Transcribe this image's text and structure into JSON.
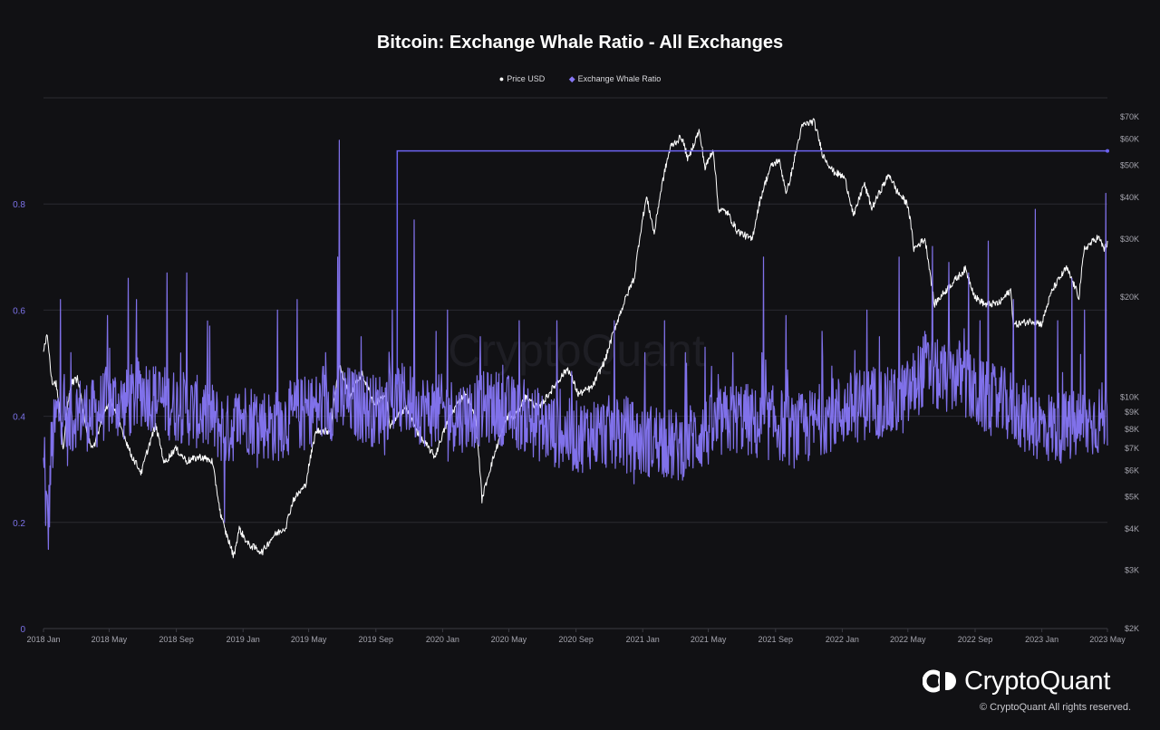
{
  "chart_data": {
    "type": "line",
    "title": "Bitcoin: Exchange Whale Ratio - All Exchanges",
    "legend_position": "top-center",
    "grid": true,
    "x_axis": {
      "range": [
        "2018-01-01",
        "2023-05-01"
      ],
      "tick_labels": [
        "2018 Jan",
        "2018 May",
        "2018 Sep",
        "2019 Jan",
        "2019 May",
        "2019 Sep",
        "2020 Jan",
        "2020 May",
        "2020 Sep",
        "2021 Jan",
        "2021 May",
        "2021 Sep",
        "2022 Jan",
        "2022 May",
        "2022 Sep",
        "2023 Jan",
        "2023 May"
      ],
      "tick_dates": [
        "2018-01-01",
        "2018-05-01",
        "2018-09-01",
        "2019-01-01",
        "2019-05-01",
        "2019-09-01",
        "2020-01-01",
        "2020-05-01",
        "2020-09-01",
        "2021-01-01",
        "2021-05-01",
        "2021-09-01",
        "2022-01-01",
        "2022-05-01",
        "2022-09-01",
        "2023-01-01",
        "2023-05-01"
      ]
    },
    "y_left": {
      "range": [
        0,
        1.0
      ],
      "tick_values": [
        0,
        0.2,
        0.4,
        0.6,
        0.8
      ],
      "tick_labels": [
        "0",
        "0.2",
        "0.4",
        "0.6",
        "0.8"
      ]
    },
    "y_right": {
      "scale": "log",
      "range": [
        2000,
        80000
      ],
      "tick_values": [
        2000,
        3000,
        4000,
        5000,
        6000,
        7000,
        8000,
        9000,
        10000,
        20000,
        30000,
        40000,
        50000,
        60000,
        70000
      ],
      "tick_labels": [
        "$2K",
        "$3K",
        "$4K",
        "$5K",
        "$6K",
        "$7K",
        "$8K",
        "$9K",
        "$10K",
        "$20K",
        "$30K",
        "$40K",
        "$50K",
        "$60K",
        "$70K"
      ]
    },
    "series": [
      {
        "name": "Price USD",
        "axis": "right",
        "color": "#ffffff",
        "points": [
          [
            "2018-01-01",
            14000
          ],
          [
            "2018-01-08",
            15500
          ],
          [
            "2018-01-16",
            11200
          ],
          [
            "2018-01-24",
            11000
          ],
          [
            "2018-02-06",
            6900
          ],
          [
            "2018-02-20",
            11000
          ],
          [
            "2018-03-05",
            11400
          ],
          [
            "2018-03-18",
            8200
          ],
          [
            "2018-04-01",
            6900
          ],
          [
            "2018-04-12",
            7900
          ],
          [
            "2018-04-25",
            9300
          ],
          [
            "2018-05-06",
            9700
          ],
          [
            "2018-05-20",
            8300
          ],
          [
            "2018-06-10",
            6700
          ],
          [
            "2018-06-29",
            5900
          ],
          [
            "2018-07-25",
            8200
          ],
          [
            "2018-08-10",
            6300
          ],
          [
            "2018-08-30",
            7000
          ],
          [
            "2018-09-20",
            6400
          ],
          [
            "2018-10-15",
            6600
          ],
          [
            "2018-11-05",
            6400
          ],
          [
            "2018-11-20",
            4500
          ],
          [
            "2018-11-28",
            4000
          ],
          [
            "2018-12-15",
            3300
          ],
          [
            "2018-12-25",
            4000
          ],
          [
            "2019-01-10",
            3600
          ],
          [
            "2019-02-05",
            3400
          ],
          [
            "2019-02-25",
            3800
          ],
          [
            "2019-03-20",
            4050
          ],
          [
            "2019-04-03",
            4900
          ],
          [
            "2019-04-25",
            5400
          ],
          [
            "2019-05-15",
            7900
          ],
          [
            "2019-06-10",
            7900
          ],
          [
            "2019-06-26",
            12500
          ],
          [
            "2019-07-15",
            10000
          ],
          [
            "2019-08-06",
            11800
          ],
          [
            "2019-08-29",
            9500
          ],
          [
            "2019-09-20",
            10200
          ],
          [
            "2019-09-26",
            8100
          ],
          [
            "2019-10-25",
            9300
          ],
          [
            "2019-11-20",
            7600
          ],
          [
            "2019-12-18",
            6600
          ],
          [
            "2020-01-15",
            8800
          ],
          [
            "2020-02-12",
            10300
          ],
          [
            "2020-03-01",
            8600
          ],
          [
            "2020-03-13",
            4900
          ],
          [
            "2020-04-01",
            6400
          ],
          [
            "2020-04-30",
            8800
          ],
          [
            "2020-05-10",
            8600
          ],
          [
            "2020-06-01",
            10000
          ],
          [
            "2020-06-25",
            9200
          ],
          [
            "2020-07-27",
            11000
          ],
          [
            "2020-08-17",
            12200
          ],
          [
            "2020-09-05",
            10200
          ],
          [
            "2020-10-01",
            10700
          ],
          [
            "2020-10-25",
            13000
          ],
          [
            "2020-11-25",
            18700
          ],
          [
            "2020-12-17",
            23000
          ],
          [
            "2021-01-08",
            40000
          ],
          [
            "2021-01-22",
            31000
          ],
          [
            "2021-02-08",
            46000
          ],
          [
            "2021-02-21",
            57000
          ],
          [
            "2021-03-13",
            61000
          ],
          [
            "2021-03-25",
            52000
          ],
          [
            "2021-04-14",
            63500
          ],
          [
            "2021-04-25",
            49000
          ],
          [
            "2021-05-10",
            56000
          ],
          [
            "2021-05-19",
            37000
          ],
          [
            "2021-06-05",
            36000
          ],
          [
            "2021-06-22",
            31800
          ],
          [
            "2021-07-20",
            29800
          ],
          [
            "2021-08-05",
            40000
          ],
          [
            "2021-08-23",
            49500
          ],
          [
            "2021-09-07",
            52000
          ],
          [
            "2021-09-21",
            41000
          ],
          [
            "2021-10-01",
            48000
          ],
          [
            "2021-10-20",
            66000
          ],
          [
            "2021-11-10",
            68000
          ],
          [
            "2021-11-26",
            54000
          ],
          [
            "2021-12-15",
            48000
          ],
          [
            "2022-01-05",
            46000
          ],
          [
            "2022-01-22",
            35000
          ],
          [
            "2022-02-10",
            44000
          ],
          [
            "2022-02-24",
            37000
          ],
          [
            "2022-03-28",
            47000
          ],
          [
            "2022-04-10",
            42000
          ],
          [
            "2022-05-01",
            38000
          ],
          [
            "2022-05-12",
            28000
          ],
          [
            "2022-06-01",
            30000
          ],
          [
            "2022-06-18",
            19000
          ],
          [
            "2022-07-10",
            21000
          ],
          [
            "2022-08-14",
            24300
          ],
          [
            "2022-09-01",
            20000
          ],
          [
            "2022-09-20",
            19000
          ],
          [
            "2022-10-15",
            19200
          ],
          [
            "2022-11-05",
            21000
          ],
          [
            "2022-11-10",
            16500
          ],
          [
            "2022-12-15",
            17000
          ],
          [
            "2023-01-01",
            16600
          ],
          [
            "2023-01-20",
            21000
          ],
          [
            "2023-02-15",
            24500
          ],
          [
            "2023-03-10",
            20000
          ],
          [
            "2023-03-20",
            28000
          ],
          [
            "2023-04-14",
            30400
          ],
          [
            "2023-04-25",
            28000
          ],
          [
            "2023-05-01",
            29000
          ]
        ]
      },
      {
        "name": "Exchange Whale Ratio",
        "axis": "left",
        "color": "#8777f5",
        "points": [
          [
            "2018-01-01",
            0.3
          ],
          [
            "2018-01-05",
            0.24
          ],
          [
            "2018-01-10",
            0.19
          ],
          [
            "2018-01-15",
            0.33
          ],
          [
            "2018-01-25",
            0.4
          ],
          [
            "2018-02-05",
            0.42
          ],
          [
            "2018-02-15",
            0.37
          ],
          [
            "2018-03-01",
            0.41
          ],
          [
            "2018-04-01",
            0.4
          ],
          [
            "2018-05-01",
            0.43
          ],
          [
            "2018-06-01",
            0.42
          ],
          [
            "2018-07-01",
            0.45
          ],
          [
            "2018-08-01",
            0.43
          ],
          [
            "2018-09-01",
            0.42
          ],
          [
            "2018-10-01",
            0.41
          ],
          [
            "2018-11-01",
            0.4
          ],
          [
            "2018-12-01",
            0.37
          ],
          [
            "2019-01-01",
            0.4
          ],
          [
            "2019-02-01",
            0.39
          ],
          [
            "2019-03-01",
            0.38
          ],
          [
            "2019-04-01",
            0.4
          ],
          [
            "2019-05-01",
            0.41
          ],
          [
            "2019-06-01",
            0.42
          ],
          [
            "2019-07-01",
            0.43
          ],
          [
            "2019-08-01",
            0.42
          ],
          [
            "2019-09-01",
            0.41
          ],
          [
            "2019-10-01",
            0.43
          ],
          [
            "2019-11-01",
            0.43
          ],
          [
            "2019-12-01",
            0.41
          ],
          [
            "2020-01-01",
            0.41
          ],
          [
            "2020-02-01",
            0.4
          ],
          [
            "2020-03-01",
            0.41
          ],
          [
            "2020-04-01",
            0.42
          ],
          [
            "2020-05-01",
            0.41
          ],
          [
            "2020-06-01",
            0.4
          ],
          [
            "2020-07-01",
            0.38
          ],
          [
            "2020-08-01",
            0.37
          ],
          [
            "2020-09-01",
            0.36
          ],
          [
            "2020-10-01",
            0.37
          ],
          [
            "2020-11-01",
            0.37
          ],
          [
            "2020-12-01",
            0.37
          ],
          [
            "2021-01-01",
            0.35
          ],
          [
            "2021-02-01",
            0.36
          ],
          [
            "2021-03-01",
            0.34
          ],
          [
            "2021-04-01",
            0.36
          ],
          [
            "2021-05-01",
            0.37
          ],
          [
            "2021-06-01",
            0.39
          ],
          [
            "2021-07-01",
            0.4
          ],
          [
            "2021-08-01",
            0.38
          ],
          [
            "2021-09-01",
            0.39
          ],
          [
            "2021-10-01",
            0.37
          ],
          [
            "2021-11-01",
            0.38
          ],
          [
            "2021-12-01",
            0.4
          ],
          [
            "2022-01-01",
            0.41
          ],
          [
            "2022-02-01",
            0.42
          ],
          [
            "2022-03-01",
            0.43
          ],
          [
            "2022-04-01",
            0.42
          ],
          [
            "2022-05-01",
            0.44
          ],
          [
            "2022-06-01",
            0.49
          ],
          [
            "2022-07-01",
            0.47
          ],
          [
            "2022-08-01",
            0.48
          ],
          [
            "2022-09-01",
            0.44
          ],
          [
            "2022-10-01",
            0.43
          ],
          [
            "2022-11-01",
            0.42
          ],
          [
            "2022-12-01",
            0.4
          ],
          [
            "2023-01-01",
            0.38
          ],
          [
            "2023-02-01",
            0.38
          ],
          [
            "2023-03-01",
            0.38
          ],
          [
            "2023-04-01",
            0.39
          ],
          [
            "2023-05-01",
            0.4
          ]
        ],
        "spikes": [
          [
            "2018-01-03",
            0.36
          ],
          [
            "2018-02-01",
            0.62
          ],
          [
            "2018-02-20",
            0.52
          ],
          [
            "2018-04-28",
            0.59
          ],
          [
            "2018-06-05",
            0.66
          ],
          [
            "2018-06-20",
            0.62
          ],
          [
            "2018-08-15",
            0.67
          ],
          [
            "2018-09-20",
            0.67
          ],
          [
            "2018-11-01",
            0.57
          ],
          [
            "2018-11-28",
            0.2
          ],
          [
            "2019-03-05",
            0.6
          ],
          [
            "2019-04-10",
            0.62
          ],
          [
            "2019-06-01",
            0.52
          ],
          [
            "2019-06-26",
            0.92
          ],
          [
            "2019-06-23",
            0.7
          ],
          [
            "2019-08-05",
            0.55
          ],
          [
            "2019-10-01",
            0.6
          ],
          [
            "2019-11-10",
            0.77
          ],
          [
            "2019-12-20",
            0.56
          ],
          [
            "2020-01-10",
            0.6
          ],
          [
            "2020-03-10",
            0.55
          ],
          [
            "2020-05-20",
            0.58
          ],
          [
            "2020-07-28",
            0.58
          ],
          [
            "2020-11-10",
            0.58
          ],
          [
            "2021-01-05",
            0.52
          ],
          [
            "2021-02-10",
            0.58
          ],
          [
            "2021-03-20",
            0.52
          ],
          [
            "2021-04-25",
            0.53
          ],
          [
            "2021-06-15",
            0.52
          ],
          [
            "2021-08-10",
            0.7
          ],
          [
            "2021-09-20",
            0.59
          ],
          [
            "2021-11-25",
            0.56
          ],
          [
            "2022-02-15",
            0.6
          ],
          [
            "2022-03-10",
            0.55
          ],
          [
            "2022-04-15",
            0.7
          ],
          [
            "2022-06-01",
            0.56
          ],
          [
            "2022-06-15",
            0.72
          ],
          [
            "2022-06-22",
            0.49
          ],
          [
            "2022-07-15",
            0.69
          ],
          [
            "2022-08-20",
            0.67
          ],
          [
            "2022-09-10",
            0.58
          ],
          [
            "2022-09-25",
            0.73
          ],
          [
            "2022-11-10",
            0.62
          ],
          [
            "2022-12-20",
            0.79
          ],
          [
            "2023-01-30",
            0.58
          ],
          [
            "2023-02-25",
            0.66
          ],
          [
            "2023-03-20",
            0.6
          ],
          [
            "2023-04-28",
            0.82
          ]
        ]
      }
    ],
    "annotations": [
      {
        "type": "horizontal-line",
        "series": "Exchange Whale Ratio",
        "y": 0.9,
        "from": "2019-10-10",
        "to": "2023-05-01",
        "color": "#6c63f0"
      }
    ]
  },
  "legend": [
    {
      "label": "Price USD",
      "color": "#ffffff",
      "marker": "circle"
    },
    {
      "label": "Exchange Whale Ratio",
      "color": "#8777f5",
      "marker": "diamond"
    }
  ],
  "watermark": "CryptoQuant",
  "brand": {
    "name": "CryptoQuant",
    "copyright": "© CryptoQuant All rights reserved."
  },
  "colors": {
    "background": "#111114",
    "grid": "#2a2a30",
    "axis_text": "#a4a4ad",
    "left_axis_text": "#7c72e8"
  }
}
